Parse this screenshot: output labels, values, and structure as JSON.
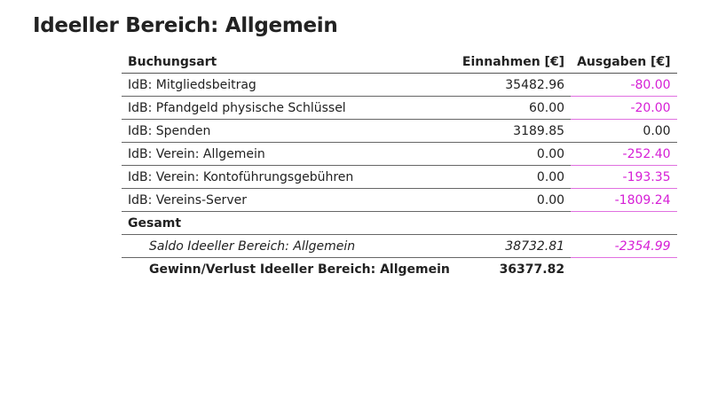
{
  "header": {
    "title": "Ideeller Bereich: Allgemein"
  },
  "table": {
    "columns": [
      "Buchungsart",
      "Einnahmen [€]",
      "Ausgaben [€]"
    ],
    "rows": [
      [
        "IdB: Mitgliedsbeitrag",
        "35482.96",
        "-80.00"
      ],
      [
        "IdB: Pfandgeld physische Schlüssel",
        "60.00",
        "-20.00"
      ],
      [
        "IdB: Spenden",
        "3189.85",
        "0.00"
      ],
      [
        "IdB: Verein: Allgemein",
        "0.00",
        "-252.40"
      ],
      [
        "IdB: Verein: Kontoführungsgebühren",
        "0.00",
        "-193.35"
      ],
      [
        "IdB: Vereins-Server",
        "0.00",
        "-1809.24"
      ]
    ],
    "total_heading": "Gesamt",
    "saldo": [
      "Saldo Ideeller Bereich: Allgemein",
      "38732.81",
      "-2354.99"
    ],
    "result": [
      "Gewinn/Verlust Ideeller Bereich: Allgemein",
      "36377.82"
    ]
  }
}
